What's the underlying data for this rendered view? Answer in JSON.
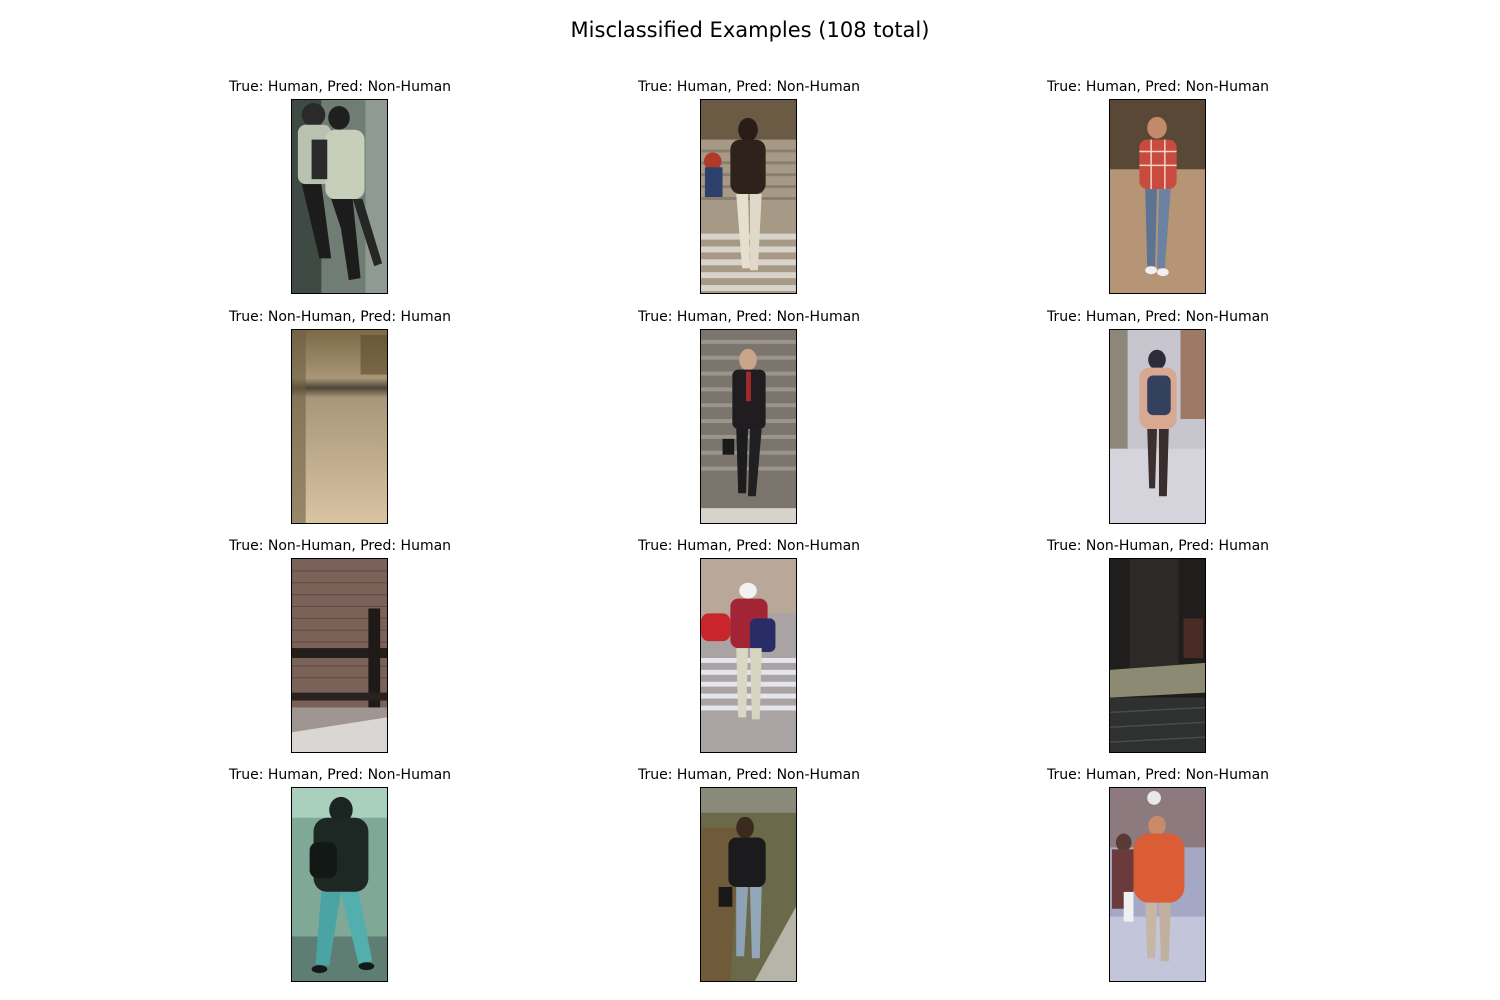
{
  "figure": {
    "title": "Misclassified Examples (108 total)"
  },
  "panels": [
    {
      "caption": "True: Human, Pred: Non-Human"
    },
    {
      "caption": "True: Human, Pred: Non-Human"
    },
    {
      "caption": "True: Human, Pred: Non-Human"
    },
    {
      "caption": "True: Non-Human, Pred: Human"
    },
    {
      "caption": "True: Human, Pred: Non-Human"
    },
    {
      "caption": "True: Human, Pred: Non-Human"
    },
    {
      "caption": "True: Non-Human, Pred: Human"
    },
    {
      "caption": "True: Human, Pred: Non-Human"
    },
    {
      "caption": "True: Non-Human, Pred: Human"
    },
    {
      "caption": "True: Human, Pred: Non-Human"
    },
    {
      "caption": "True: Human, Pred: Non-Human"
    },
    {
      "caption": "True: Human, Pred: Non-Human"
    }
  ]
}
